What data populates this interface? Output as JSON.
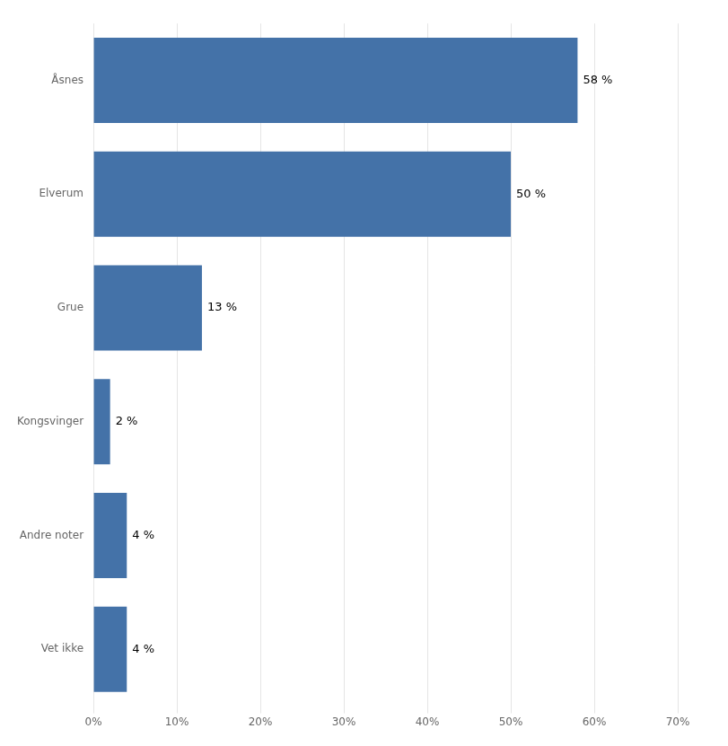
{
  "chart_data": {
    "type": "bar",
    "orientation": "horizontal",
    "categories": [
      "Vet ikke",
      "Andre noter",
      "Kongsvinger",
      "Grue",
      "Elverum",
      "Åsnes"
    ],
    "values": [
      4,
      4,
      2,
      13,
      50,
      58
    ],
    "value_labels": [
      "4 %",
      "4 %",
      "2 %",
      "13 %",
      "50 %",
      "58 %"
    ],
    "data_labels": true,
    "color": "#4472a8",
    "xlim": [
      0,
      70
    ],
    "xticks": [
      {
        "value": 0,
        "label": "0%"
      },
      {
        "value": 10,
        "label": "10%"
      },
      {
        "value": 20,
        "label": "20%"
      },
      {
        "value": 30,
        "label": "30%"
      },
      {
        "value": 40,
        "label": "40%"
      },
      {
        "value": 50,
        "label": "50%"
      },
      {
        "value": 60,
        "label": "60%"
      },
      {
        "value": 70,
        "label": "70%"
      }
    ],
    "grid": true
  }
}
